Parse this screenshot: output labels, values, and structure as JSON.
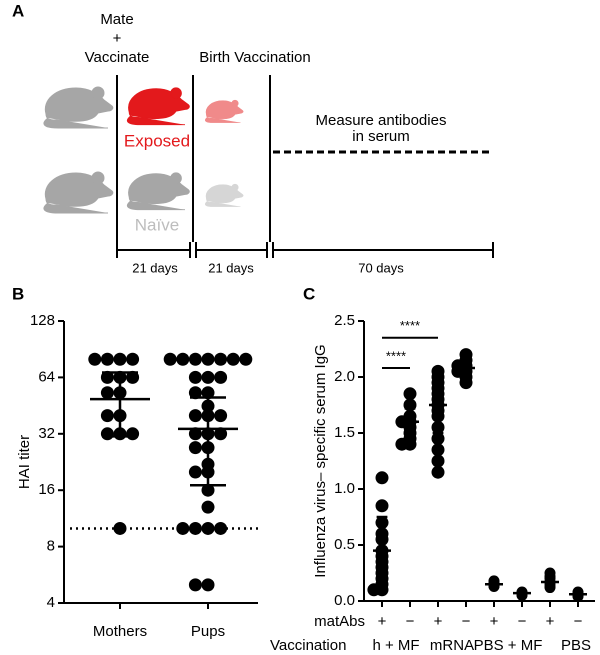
{
  "panel_a": {
    "label": "A",
    "mate": "Mate",
    "plus": "+",
    "vaccinate": "Vaccinate",
    "birth_vaccination": "Birth Vaccination",
    "exposed": "Exposed",
    "naive": "Naïve",
    "measure_line1": "Measure antibodies",
    "measure_line2": "in serum",
    "durations": [
      "21 days",
      "21 days",
      "70 days"
    ]
  },
  "chart_data": [
    {
      "type": "dot_plot",
      "panel": "B",
      "y_label": "HAI titer",
      "log_scale": true,
      "log_base": 2,
      "categories": [
        "Mothers",
        "Pups"
      ],
      "color": "#000000",
      "points": [
        [
          80,
          80,
          80,
          80,
          64,
          64,
          64,
          53,
          53,
          40,
          40,
          32,
          32,
          32,
          10
        ],
        [
          80,
          80,
          80,
          80,
          80,
          80,
          80,
          64,
          64,
          64,
          53,
          53,
          45,
          40,
          40,
          40,
          32,
          32,
          32,
          27,
          27,
          22,
          20,
          20,
          16,
          13,
          10,
          10,
          10,
          10,
          5,
          5
        ]
      ],
      "mean": [
        49,
        34
      ],
      "sd_low": [
        31,
        17
      ],
      "sd_high": [
        68,
        50
      ],
      "reference_line": 10,
      "ylim": [
        4,
        128
      ],
      "yticks": [
        4,
        8,
        16,
        32,
        64,
        128
      ]
    },
    {
      "type": "dot_plot",
      "panel": "C",
      "y_label": "Influenza virus– specific serum IgG",
      "log_scale": false,
      "row_label": "matAbs",
      "categories": [
        "+",
        "−",
        "+",
        "−",
        "+",
        "−",
        "+",
        "−"
      ],
      "group_label": "Vaccination",
      "groups": [
        "h + MF",
        "mRNA",
        "PBS + MF",
        "PBS"
      ],
      "color": "#000000",
      "points": [
        [
          1.1,
          0.85,
          0.7,
          0.6,
          0.55,
          0.45,
          0.4,
          0.35,
          0.3,
          0.25,
          0.2,
          0.15,
          0.1,
          0.1
        ],
        [
          1.85,
          1.75,
          1.65,
          1.6,
          1.6,
          1.55,
          1.5,
          1.45,
          1.4,
          1.4
        ],
        [
          2.05,
          2.0,
          1.95,
          1.9,
          1.85,
          1.8,
          1.75,
          1.7,
          1.65,
          1.55,
          1.45,
          1.35,
          1.25,
          1.15
        ],
        [
          2.2,
          2.15,
          2.1,
          2.1,
          2.05,
          2.05,
          2.0,
          1.95
        ],
        [
          0.18,
          0.16,
          0.15,
          0.14,
          0.13
        ],
        [
          0.08,
          0.07,
          0.06,
          0.05
        ],
        [
          0.25,
          0.22,
          0.2,
          0.17,
          0.15,
          0.12
        ],
        [
          0.08,
          0.07,
          0.05,
          0.04
        ]
      ],
      "mean": [
        0.45,
        1.6,
        1.75,
        2.08,
        0.15,
        0.07,
        0.17,
        0.06
      ],
      "sd": [
        0.3,
        0.12,
        0.25,
        0.07,
        0.02,
        0.01,
        0.04,
        0.01
      ],
      "significance": [
        {
          "text": "****",
          "y": 2.35
        },
        {
          "text": "****",
          "y": 2.08
        }
      ],
      "ylim": [
        0,
        2.5
      ],
      "yticks": [
        {
          "value": 0,
          "label": "0.0"
        },
        {
          "value": 0.5,
          "label": "0.5"
        },
        {
          "value": 1,
          "label": "1.0"
        },
        {
          "value": 1.5,
          "label": "1.5"
        },
        {
          "value": 2,
          "label": "2.0"
        },
        {
          "value": 2.5,
          "label": "2.5"
        }
      ]
    }
  ]
}
